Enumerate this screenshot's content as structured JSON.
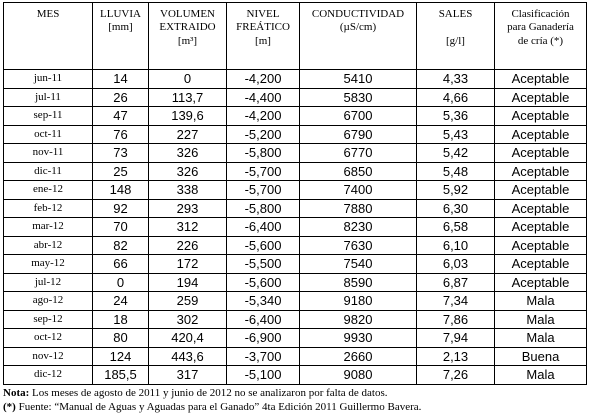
{
  "headers": {
    "mes": "MES",
    "lluvia": "LLUVIA",
    "lluvia_unit": "[mm]",
    "volumen": "VOLUMEN",
    "volumen_2": "EXTRAIDO",
    "volumen_unit": "[m³]",
    "nivel": "NIVEL",
    "nivel_2": "FREÁTICO",
    "nivel_unit": "[m]",
    "conductividad": "CONDUCTIVIDAD",
    "conductividad_unit": "(µS/cm)",
    "sales": "SALES",
    "sales_unit": "[g/l]",
    "clasificacion_1": "Clasificación",
    "clasificacion_2": "para Ganadería",
    "clasificacion_3": "de cría (*)"
  },
  "rows": [
    {
      "mes": "jun-11",
      "lluvia": "14",
      "volumen": "0",
      "nivel": "-4,200",
      "conductividad": "5410",
      "sales": "4,33",
      "clasificacion": "Aceptable"
    },
    {
      "mes": "jul-11",
      "lluvia": "26",
      "volumen": "113,7",
      "nivel": "-4,400",
      "conductividad": "5830",
      "sales": "4,66",
      "clasificacion": "Aceptable"
    },
    {
      "mes": "sep-11",
      "lluvia": "47",
      "volumen": "139,6",
      "nivel": "-4,200",
      "conductividad": "6700",
      "sales": "5,36",
      "clasificacion": "Aceptable"
    },
    {
      "mes": "oct-11",
      "lluvia": "76",
      "volumen": "227",
      "nivel": "-5,200",
      "conductividad": "6790",
      "sales": "5,43",
      "clasificacion": "Aceptable"
    },
    {
      "mes": "nov-11",
      "lluvia": "73",
      "volumen": "326",
      "nivel": "-5,800",
      "conductividad": "6770",
      "sales": "5,42",
      "clasificacion": "Aceptable"
    },
    {
      "mes": "dic-11",
      "lluvia": "25",
      "volumen": "326",
      "nivel": "-5,700",
      "conductividad": "6850",
      "sales": "5,48",
      "clasificacion": "Aceptable"
    },
    {
      "mes": "ene-12",
      "lluvia": "148",
      "volumen": "338",
      "nivel": "-5,700",
      "conductividad": "7400",
      "sales": "5,92",
      "clasificacion": "Aceptable"
    },
    {
      "mes": "feb-12",
      "lluvia": "92",
      "volumen": "293",
      "nivel": "-5,800",
      "conductividad": "7880",
      "sales": "6,30",
      "clasificacion": "Aceptable"
    },
    {
      "mes": "mar-12",
      "lluvia": "70",
      "volumen": "312",
      "nivel": "-6,400",
      "conductividad": "8230",
      "sales": "6,58",
      "clasificacion": "Aceptable"
    },
    {
      "mes": "abr-12",
      "lluvia": "82",
      "volumen": "226",
      "nivel": "-5,600",
      "conductividad": "7630",
      "sales": "6,10",
      "clasificacion": "Aceptable"
    },
    {
      "mes": "may-12",
      "lluvia": "66",
      "volumen": "172",
      "nivel": "-5,500",
      "conductividad": "7540",
      "sales": "6,03",
      "clasificacion": "Aceptable"
    },
    {
      "mes": "jul-12",
      "lluvia": "0",
      "volumen": "194",
      "nivel": "-5,600",
      "conductividad": "8590",
      "sales": "6,87",
      "clasificacion": "Aceptable"
    },
    {
      "mes": "ago-12",
      "lluvia": "24",
      "volumen": "259",
      "nivel": "-5,340",
      "conductividad": "9180",
      "sales": "7,34",
      "clasificacion": "Mala"
    },
    {
      "mes": "sep-12",
      "lluvia": "18",
      "volumen": "302",
      "nivel": "-6,400",
      "conductividad": "9820",
      "sales": "7,86",
      "clasificacion": "Mala"
    },
    {
      "mes": "oct-12",
      "lluvia": "80",
      "volumen": "420,4",
      "nivel": "-6,900",
      "conductividad": "9930",
      "sales": "7,94",
      "clasificacion": "Mala"
    },
    {
      "mes": "nov-12",
      "lluvia": "124",
      "volumen": "443,6",
      "nivel": "-3,700",
      "conductividad": "2660",
      "sales": "2,13",
      "clasificacion": "Buena"
    },
    {
      "mes": "dic-12",
      "lluvia": "185,5",
      "volumen": "317",
      "nivel": "-5,100",
      "conductividad": "9080",
      "sales": "7,26",
      "clasificacion": "Mala"
    }
  ],
  "notes": {
    "nota_label": "Nota:",
    "nota_text": " Los meses de agosto de 2011 y junio de 2012 no se analizaron por falta de datos.",
    "fuente_label": "(*)",
    "fuente_text": " Fuente: “Manual de Aguas y Aguadas para el Ganado” 4ta Edición 2011 Guillermo Bavera."
  }
}
